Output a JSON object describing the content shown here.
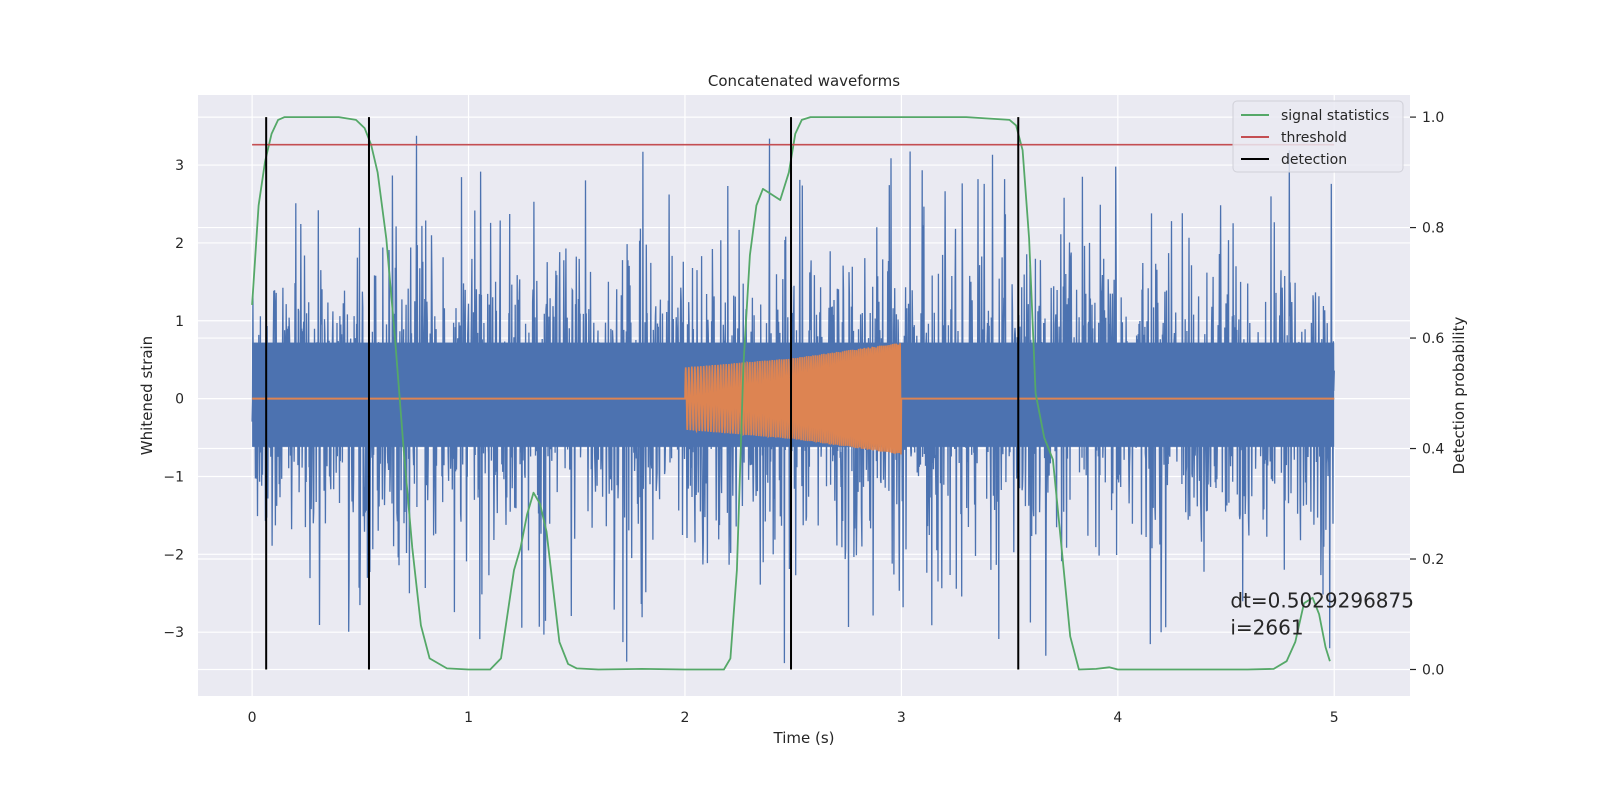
{
  "chart_data": {
    "type": "line",
    "title": "Concatenated waveforms",
    "xlabel": "Time (s)",
    "ylabel": "Whitened strain",
    "y2label": "Detection probability",
    "xlim": [
      -0.25,
      5.35
    ],
    "ylim": [
      -3.82,
      3.9
    ],
    "y2lim": [
      -0.048,
      1.04
    ],
    "x_ticks": [
      0,
      1,
      2,
      3,
      4,
      5
    ],
    "y_ticks": [
      -3,
      -2,
      -1,
      0,
      1,
      2,
      3
    ],
    "y2_ticks": [
      0.0,
      0.2,
      0.4,
      0.6,
      0.8,
      1.0
    ],
    "grid": true,
    "legend_position": "top-right",
    "colors": {
      "background": "#eaeaf2",
      "grid": "#ffffff",
      "strain": "#4c72b0",
      "waveform": "#dd8452",
      "signal_statistics": "#55a868",
      "threshold": "#c44e52",
      "detection": "#000000"
    },
    "series": [
      {
        "name": "",
        "description": "whitened strain noise",
        "x_range": [
          0,
          5
        ],
        "typical_abs_amplitude": 0.7,
        "peak_abs_amplitude": 3.4
      },
      {
        "name": "",
        "description": "injected chirp waveform",
        "x_range": [
          2.0,
          3.0
        ],
        "envelope": [
          [
            2.0,
            0.4
          ],
          [
            2.5,
            0.52
          ],
          [
            3.0,
            0.72
          ]
        ],
        "zero_outside": true
      },
      {
        "name": "signal statistics",
        "axis": "right",
        "x": [
          0,
          0.03,
          0.06,
          0.09,
          0.12,
          0.15,
          0.2,
          0.3,
          0.4,
          0.48,
          0.52,
          0.55,
          0.58,
          0.62,
          0.66,
          0.7,
          0.74,
          0.78,
          0.82,
          0.9,
          1.0,
          1.1,
          1.15,
          1.18,
          1.21,
          1.24,
          1.27,
          1.3,
          1.33,
          1.36,
          1.39,
          1.42,
          1.46,
          1.5,
          1.6,
          1.8,
          2.0,
          2.1,
          2.18,
          2.21,
          2.24,
          2.27,
          2.3,
          2.33,
          2.36,
          2.4,
          2.44,
          2.48,
          2.51,
          2.54,
          2.58,
          2.62,
          2.7,
          3.0,
          3.3,
          3.5,
          3.53,
          3.56,
          3.59,
          3.62,
          3.66,
          3.7,
          3.74,
          3.78,
          3.82,
          3.9,
          3.96,
          4.0,
          4.2,
          4.4,
          4.6,
          4.72,
          4.78,
          4.82,
          4.86,
          4.9,
          4.93,
          4.96,
          4.98
        ],
        "y": [
          0.66,
          0.84,
          0.92,
          0.97,
          0.995,
          1.0,
          1.0,
          1.0,
          1.0,
          0.995,
          0.98,
          0.95,
          0.9,
          0.78,
          0.6,
          0.4,
          0.22,
          0.08,
          0.02,
          0.002,
          0.0,
          0.0,
          0.02,
          0.1,
          0.18,
          0.22,
          0.28,
          0.32,
          0.3,
          0.25,
          0.15,
          0.05,
          0.01,
          0.002,
          0.0,
          0.001,
          0.0,
          0.0,
          0.0,
          0.02,
          0.18,
          0.55,
          0.75,
          0.84,
          0.87,
          0.86,
          0.85,
          0.9,
          0.97,
          0.995,
          1.0,
          1.0,
          1.0,
          1.0,
          1.0,
          0.995,
          0.985,
          0.94,
          0.78,
          0.5,
          0.42,
          0.38,
          0.22,
          0.06,
          0.0,
          0.001,
          0.004,
          0.0,
          0.0,
          0.0,
          0.0,
          0.001,
          0.015,
          0.05,
          0.12,
          0.13,
          0.1,
          0.04,
          0.015
        ]
      },
      {
        "name": "threshold",
        "axis": "right",
        "x": [
          0,
          5
        ],
        "y": [
          0.95,
          0.95
        ]
      },
      {
        "name": "detection",
        "axis": "right",
        "x_positions": [
          0.065,
          0.54,
          2.49,
          3.54
        ],
        "y_range": [
          0.0,
          1.0
        ]
      }
    ],
    "annotations": [
      {
        "text": "dt=0.5029296875",
        "x": 4.52,
        "y": -2.68
      },
      {
        "text": " i=2661",
        "x": 4.52,
        "y": -3.03
      }
    ]
  }
}
